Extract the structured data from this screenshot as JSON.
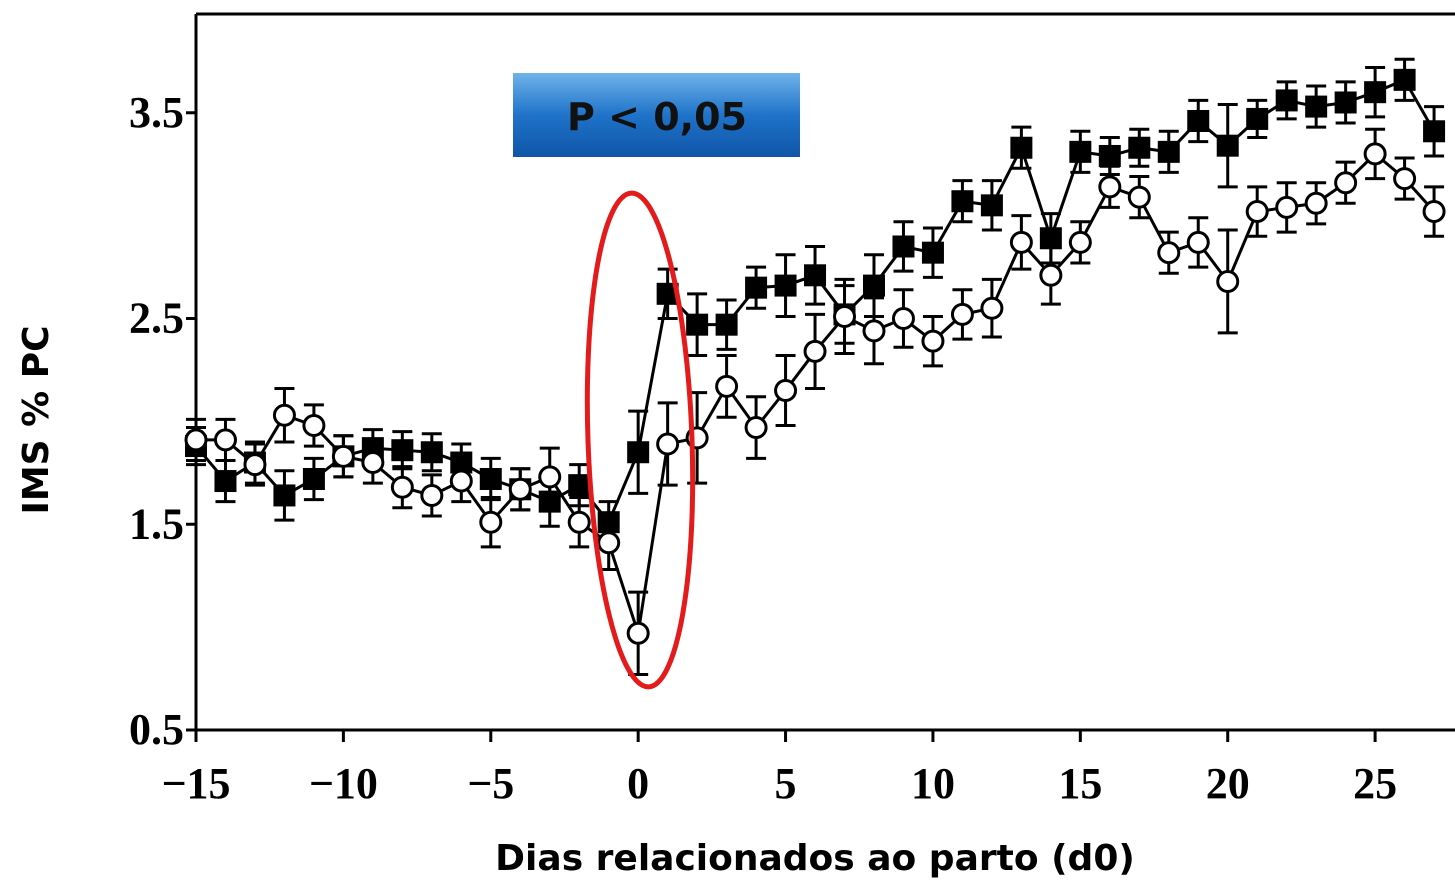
{
  "chart_data": {
    "type": "line",
    "ylabel": "IMS % PC",
    "xlabel": "Dias relacionados ao parto (d0)",
    "annotation": "P < 0,05",
    "x": [
      -15,
      -14,
      -13,
      -12,
      -11,
      -10,
      -9,
      -8,
      -7,
      -6,
      -5,
      -4,
      -3,
      -2,
      -1,
      0,
      1,
      2,
      3,
      4,
      5,
      6,
      7,
      8,
      9,
      10,
      11,
      12,
      13,
      14,
      15,
      16,
      17,
      18,
      19,
      20,
      21,
      22,
      23,
      24,
      25,
      26,
      27
    ],
    "series": [
      {
        "color": "#000000",
        "marker": "square",
        "values": [
          1.88,
          1.71,
          1.8,
          1.64,
          1.72,
          1.83,
          1.87,
          1.86,
          1.85,
          1.8,
          1.72,
          1.67,
          1.61,
          1.69,
          1.51,
          1.85,
          2.62,
          2.47,
          2.47,
          2.65,
          2.66,
          2.71,
          2.52,
          2.66,
          2.85,
          2.82,
          3.07,
          3.05,
          3.33,
          2.89,
          3.31,
          3.29,
          3.33,
          3.31,
          3.46,
          3.34,
          3.47,
          3.56,
          3.53,
          3.55,
          3.6,
          3.66,
          3.41
        ],
        "errors": [
          0.09,
          0.1,
          0.1,
          0.12,
          0.1,
          0.1,
          0.09,
          0.09,
          0.09,
          0.09,
          0.1,
          0.1,
          0.12,
          0.1,
          0.1,
          0.2,
          0.12,
          0.15,
          0.12,
          0.1,
          0.15,
          0.14,
          0.14,
          0.15,
          0.12,
          0.12,
          0.1,
          0.12,
          0.1,
          0.12,
          0.1,
          0.09,
          0.09,
          0.1,
          0.1,
          0.2,
          0.09,
          0.09,
          0.1,
          0.1,
          0.12,
          0.1,
          0.12
        ]
      },
      {
        "color": "#000000",
        "marker": "circle",
        "values": [
          1.91,
          1.91,
          1.79,
          2.03,
          1.98,
          1.83,
          1.8,
          1.68,
          1.64,
          1.71,
          1.51,
          1.67,
          1.73,
          1.51,
          1.41,
          0.97,
          1.89,
          1.92,
          2.17,
          1.97,
          2.15,
          2.34,
          2.51,
          2.44,
          2.5,
          2.39,
          2.52,
          2.55,
          2.87,
          2.71,
          2.87,
          3.14,
          3.09,
          2.82,
          2.87,
          2.68,
          3.02,
          3.04,
          3.06,
          3.16,
          3.3,
          3.18,
          3.02
        ],
        "errors": [
          0.1,
          0.1,
          0.1,
          0.13,
          0.1,
          0.1,
          0.1,
          0.1,
          0.1,
          0.1,
          0.12,
          0.1,
          0.14,
          0.12,
          0.13,
          0.2,
          0.2,
          0.22,
          0.15,
          0.15,
          0.17,
          0.18,
          0.18,
          0.16,
          0.14,
          0.12,
          0.12,
          0.14,
          0.13,
          0.14,
          0.1,
          0.1,
          0.1,
          0.1,
          0.12,
          0.25,
          0.12,
          0.12,
          0.1,
          0.1,
          0.12,
          0.1,
          0.12
        ]
      }
    ],
    "xlim": [
      -15,
      27.71
    ],
    "ylim": [
      0.5,
      3.98
    ],
    "xticks": [
      {
        "value": -15,
        "label": "−15"
      },
      {
        "value": -10,
        "label": "−10"
      },
      {
        "value": -5,
        "label": "−5"
      },
      0,
      5,
      10,
      15,
      20,
      25
    ],
    "yticks": [
      0.5,
      1.5,
      2.5,
      3.5
    ]
  }
}
